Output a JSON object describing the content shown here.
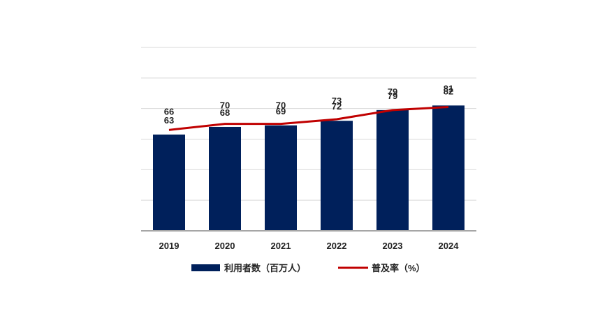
{
  "chart_data": {
    "type": "bar",
    "categories": [
      "2019",
      "2020",
      "2021",
      "2022",
      "2023",
      "2024"
    ],
    "series": [
      {
        "name": "利用者数（百万人）",
        "type": "bar",
        "values": [
          63,
          68,
          69,
          72,
          79,
          82
        ],
        "color": "#00205b"
      },
      {
        "name": "普及率（%）",
        "type": "line",
        "values": [
          66,
          70,
          70,
          73,
          79,
          81
        ],
        "color": "#c00000"
      }
    ],
    "title": "",
    "xlabel": "",
    "ylabel": "",
    "ylim": [
      0,
      120
    ],
    "grid": true,
    "legend": "bottom",
    "data_labels": true
  }
}
